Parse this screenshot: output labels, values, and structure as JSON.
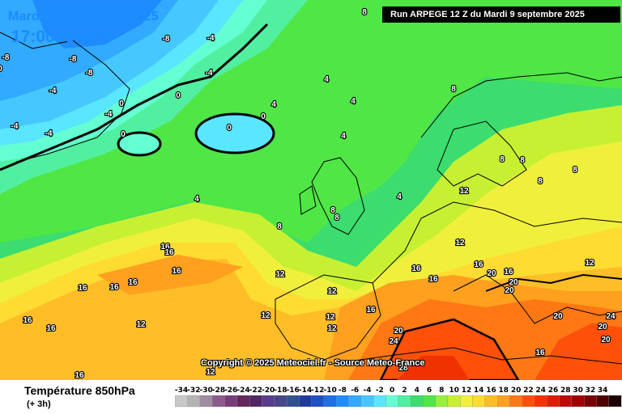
{
  "title": {
    "date": "Mardi 9 septembre 2025",
    "time": "17:00 locale"
  },
  "run_info": "Run ARPEGE 12 Z du Mardi 9 septembre 2025",
  "copyright": "Copyright © 2025 Meteociel.fr - Source Meteo-France",
  "variable": {
    "title": "Température 850hPa",
    "step": "(+ 3h)"
  },
  "legend": {
    "values": [
      -34,
      -32,
      -30,
      -28,
      -26,
      -24,
      -22,
      -20,
      -18,
      -16,
      -14,
      -12,
      -10,
      -8,
      -6,
      -4,
      -2,
      0,
      2,
      4,
      6,
      8,
      10,
      12,
      14,
      16,
      18,
      20,
      22,
      24,
      26,
      28,
      30,
      32,
      34
    ],
    "colors": [
      "#c8c8c8",
      "#b4b4b4",
      "#a08ca0",
      "#8c5a8c",
      "#783c78",
      "#64285a",
      "#502864",
      "#5a3c8c",
      "#46468c",
      "#32508c",
      "#1e3ca0",
      "#1e50c8",
      "#1e6ee6",
      "#1e8cff",
      "#32aaff",
      "#46c8ff",
      "#5ae6ff",
      "#64ffd2",
      "#50f0a0",
      "#3cdc6e",
      "#50e646",
      "#96f03c",
      "#c8f032",
      "#f0f03c",
      "#ffdc32",
      "#ffbe28",
      "#ffa01e",
      "#ff7814",
      "#ff500a",
      "#f03200",
      "#dc1e00",
      "#be0a0a",
      "#a00000",
      "#780000",
      "#500000",
      "#1e0000"
    ]
  },
  "isotherm_labels": [
    {
      "t": "-8"
    },
    {
      "t": "-8"
    },
    {
      "t": "-8"
    },
    {
      "t": "-8"
    },
    {
      "t": "-4"
    },
    {
      "t": "-4"
    },
    {
      "t": "-4"
    },
    {
      "t": "-4"
    },
    {
      "t": "-4"
    },
    {
      "t": "-4"
    },
    {
      "t": "0"
    },
    {
      "t": "0"
    },
    {
      "t": "0"
    },
    {
      "t": "0"
    },
    {
      "t": "0"
    },
    {
      "t": "0"
    },
    {
      "t": "4"
    },
    {
      "t": "4"
    },
    {
      "t": "4"
    },
    {
      "t": "4"
    },
    {
      "t": "4"
    },
    {
      "t": "4"
    },
    {
      "t": "8"
    },
    {
      "t": "8"
    },
    {
      "t": "8"
    },
    {
      "t": "8"
    },
    {
      "t": "8"
    },
    {
      "t": "8"
    },
    {
      "t": "8"
    },
    {
      "t": "8"
    },
    {
      "t": "8"
    },
    {
      "t": "12"
    },
    {
      "t": "12"
    },
    {
      "t": "12"
    },
    {
      "t": "12"
    },
    {
      "t": "12"
    },
    {
      "t": "12"
    },
    {
      "t": "12"
    },
    {
      "t": "12"
    },
    {
      "t": "12"
    },
    {
      "t": "12"
    },
    {
      "t": "16"
    },
    {
      "t": "16"
    },
    {
      "t": "16"
    },
    {
      "t": "16"
    },
    {
      "t": "16"
    },
    {
      "t": "16"
    },
    {
      "t": "16"
    },
    {
      "t": "16"
    },
    {
      "t": "16"
    },
    {
      "t": "16"
    },
    {
      "t": "16"
    },
    {
      "t": "16"
    },
    {
      "t": "16"
    },
    {
      "t": "16"
    },
    {
      "t": "20"
    },
    {
      "t": "20"
    },
    {
      "t": "20"
    },
    {
      "t": "20"
    },
    {
      "t": "20"
    },
    {
      "t": "20"
    },
    {
      "t": "20"
    },
    {
      "t": "24"
    },
    {
      "t": "24"
    },
    {
      "t": "28"
    },
    {
      "t": "16"
    }
  ]
}
